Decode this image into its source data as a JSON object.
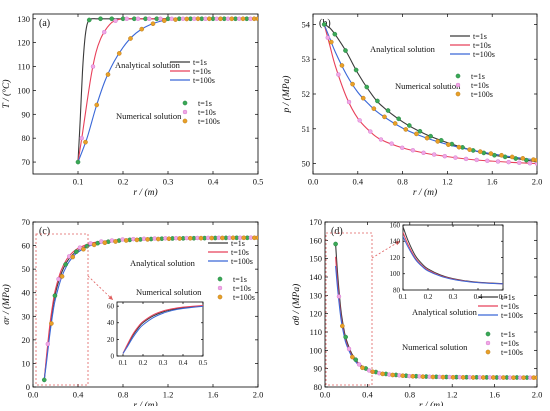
{
  "colors": {
    "t1": "#3a3a3a",
    "t10": "#e8405a",
    "t100": "#3a68d8",
    "num_t1": "#3aa856",
    "num_t10": "#f0a8e6",
    "num_t100": "#e8a028",
    "inset_box": "#e06060"
  },
  "legend": {
    "analytical": "Analytical solution",
    "numerical": "Numerical solution",
    "t1": "t=1s",
    "t10": "t=10s",
    "t100": "t=100s"
  },
  "chart_data": [
    {
      "id": "a",
      "type": "line",
      "label": "(a)",
      "xlabel": "r / (m)",
      "ylabel": "T / (°C)",
      "xlim": [
        0.0,
        0.5
      ],
      "ylim": [
        65,
        132
      ],
      "xticks": [
        0.1,
        0.2,
        0.3,
        0.4,
        0.5
      ],
      "xtick_labels": [
        "0.1",
        "0.2",
        "0.3",
        "0.4",
        "0.5"
      ],
      "yticks": [
        70,
        80,
        90,
        100,
        110,
        120,
        130
      ],
      "ytick_labels": [
        "70",
        "80",
        "90",
        "100",
        "110",
        "120",
        "130"
      ],
      "series": [
        {
          "name": "t=1s",
          "color_key": "t1",
          "marker_key": "num_t1",
          "x": [
            0.1,
            0.105,
            0.11,
            0.115,
            0.12,
            0.125,
            0.13,
            0.14,
            0.15,
            0.2,
            0.3,
            0.5
          ],
          "y": [
            70,
            88,
            108,
            121,
            127.5,
            129.5,
            130,
            130,
            130,
            130,
            130,
            130
          ]
        },
        {
          "name": "t=10s",
          "color_key": "t10",
          "marker_key": "num_t10",
          "x": [
            0.1,
            0.11,
            0.12,
            0.13,
            0.14,
            0.15,
            0.16,
            0.17,
            0.18,
            0.2,
            0.25,
            0.3,
            0.5
          ],
          "y": [
            70,
            82,
            95,
            107,
            116,
            121.5,
            125,
            127.5,
            129,
            130,
            130,
            130,
            130
          ]
        },
        {
          "name": "t=100s",
          "color_key": "t100",
          "marker_key": "num_t100",
          "x": [
            0.1,
            0.12,
            0.14,
            0.16,
            0.18,
            0.2,
            0.22,
            0.24,
            0.26,
            0.28,
            0.3,
            0.35,
            0.4,
            0.5
          ],
          "y": [
            70,
            80,
            93,
            104,
            112,
            118,
            122.5,
            125.5,
            127.5,
            128.8,
            129.5,
            130,
            130,
            130
          ]
        }
      ]
    },
    {
      "id": "b",
      "type": "line",
      "label": "(b)",
      "xlabel": "r / (m)",
      "ylabel": "p / (MPa)",
      "xlim": [
        0.0,
        2.0
      ],
      "ylim": [
        49.7,
        54.3
      ],
      "xticks": [
        0.0,
        0.4,
        0.8,
        1.2,
        1.6,
        2.0
      ],
      "xtick_labels": [
        "0.0",
        "0.4",
        "0.8",
        "1.2",
        "1.6",
        "2.0"
      ],
      "yticks": [
        50,
        51,
        52,
        53,
        54
      ],
      "ytick_labels": [
        "50",
        "51",
        "52",
        "53",
        "54"
      ],
      "series": [
        {
          "name": "t=1s",
          "color_key": "t1",
          "marker_key": "num_t1",
          "x": [
            0.1,
            0.15,
            0.2,
            0.3,
            0.4,
            0.5,
            0.6,
            0.8,
            1.0,
            1.2,
            1.4,
            1.6,
            1.8,
            2.0
          ],
          "y": [
            54,
            53.9,
            53.7,
            53.2,
            52.6,
            52.1,
            51.7,
            51.2,
            50.85,
            50.6,
            50.4,
            50.25,
            50.15,
            50.05
          ]
        },
        {
          "name": "t=10s",
          "color_key": "t10",
          "marker_key": "num_t10",
          "x": [
            0.1,
            0.15,
            0.2,
            0.3,
            0.4,
            0.5,
            0.6,
            0.8,
            1.0,
            1.2,
            1.4,
            1.6,
            1.8,
            2.0
          ],
          "y": [
            54,
            53.4,
            52.8,
            51.9,
            51.3,
            50.95,
            50.7,
            50.45,
            50.3,
            50.2,
            50.12,
            50.07,
            50.03,
            50.0
          ]
        },
        {
          "name": "t=100s",
          "color_key": "t100",
          "marker_key": "num_t100",
          "x": [
            0.1,
            0.15,
            0.2,
            0.3,
            0.4,
            0.5,
            0.6,
            0.8,
            1.0,
            1.2,
            1.4,
            1.6,
            1.8,
            2.0
          ],
          "y": [
            54,
            53.6,
            53.2,
            52.55,
            52.05,
            51.7,
            51.42,
            51.02,
            50.75,
            50.55,
            50.4,
            50.28,
            50.18,
            50.1
          ]
        }
      ]
    },
    {
      "id": "c",
      "type": "line",
      "label": "(c)",
      "xlabel": "r / (m)",
      "ylabel": "σr / (MPa)",
      "xlim": [
        0.0,
        2.0
      ],
      "ylim": [
        0,
        70
      ],
      "xticks": [
        0.0,
        0.4,
        0.8,
        1.2,
        1.6,
        2.0
      ],
      "xtick_labels": [
        "0.0",
        "0.4",
        "0.8",
        "1.2",
        "1.6",
        "2.0"
      ],
      "yticks": [
        0,
        10,
        20,
        30,
        40,
        50,
        60,
        70
      ],
      "ytick_labels": [
        "0",
        "10",
        "20",
        "30",
        "40",
        "50",
        "60",
        "70"
      ],
      "series": [
        {
          "name": "t=1s",
          "color_key": "t1",
          "marker_key": "num_t1",
          "x": [
            0.1,
            0.12,
            0.15,
            0.18,
            0.2,
            0.25,
            0.3,
            0.35,
            0.4,
            0.5,
            0.6,
            0.8,
            1.0,
            1.2,
            1.4,
            1.6,
            1.8,
            2.0
          ],
          "y": [
            3,
            12,
            25,
            35,
            40,
            48,
            53,
            56,
            58,
            60.2,
            61.3,
            62.3,
            62.7,
            63,
            63.1,
            63.2,
            63.3,
            63.3
          ]
        },
        {
          "name": "t=10s",
          "color_key": "t10",
          "marker_key": "num_t10",
          "x": [
            0.1,
            0.12,
            0.15,
            0.18,
            0.2,
            0.25,
            0.3,
            0.35,
            0.4,
            0.5,
            0.6,
            0.8,
            1.0,
            1.2,
            1.4,
            1.6,
            1.8,
            2.0
          ],
          "y": [
            3,
            13,
            26.5,
            36.5,
            41.5,
            49.5,
            54.2,
            57,
            58.8,
            60.8,
            61.7,
            62.6,
            62.9,
            63.1,
            63.2,
            63.3,
            63.3,
            63.4
          ]
        },
        {
          "name": "t=100s",
          "color_key": "t100",
          "marker_key": "num_t100",
          "x": [
            0.1,
            0.12,
            0.15,
            0.18,
            0.2,
            0.25,
            0.3,
            0.35,
            0.4,
            0.5,
            0.6,
            0.8,
            1.0,
            1.2,
            1.4,
            1.6,
            1.8,
            2.0
          ],
          "y": [
            3,
            10.5,
            22.5,
            32.5,
            37.5,
            46,
            51.5,
            55,
            57.2,
            59.8,
            61,
            62.1,
            62.6,
            62.9,
            63.1,
            63.2,
            63.3,
            63.3
          ]
        }
      ],
      "inset": {
        "xlim": [
          0.07,
          0.5
        ],
        "ylim": [
          0,
          65
        ],
        "xticks": [
          0.1,
          0.2,
          0.3,
          0.4,
          0.5
        ],
        "xtick_labels": [
          "0.1",
          "0.2",
          "0.3",
          "0.4",
          "0.5"
        ],
        "yticks": [
          0,
          20,
          40,
          60
        ],
        "ytick_labels": [
          "0",
          "20",
          "40",
          "60"
        ],
        "zoom_x": [
          0.1,
          0.5
        ],
        "zoom_y": [
          0,
          66
        ]
      }
    },
    {
      "id": "d",
      "type": "line",
      "label": "(d)",
      "xlabel": "r / (m)",
      "ylabel": "σθ / (MPa)",
      "xlim": [
        0.0,
        2.0
      ],
      "ylim": [
        80,
        170
      ],
      "xticks": [
        0.0,
        0.4,
        0.8,
        1.2,
        1.6,
        2.0
      ],
      "xtick_labels": [
        "0.0",
        "0.4",
        "0.8",
        "1.2",
        "1.6",
        "2.0"
      ],
      "yticks": [
        80,
        90,
        100,
        110,
        120,
        130,
        140,
        150,
        160,
        170
      ],
      "ytick_labels": [
        "80",
        "90",
        "100",
        "110",
        "120",
        "130",
        "140",
        "150",
        "160",
        "170"
      ],
      "series": [
        {
          "name": "t=1s",
          "color_key": "t1",
          "marker_key": "num_t1",
          "x": [
            0.1,
            0.12,
            0.15,
            0.18,
            0.2,
            0.25,
            0.3,
            0.35,
            0.4,
            0.5,
            0.6,
            0.8,
            1.0,
            1.2,
            1.4,
            1.6,
            1.8,
            2.0
          ],
          "y": [
            158,
            141,
            122,
            111,
            106,
            98.5,
            94,
            91.3,
            89.6,
            87.8,
            86.9,
            86,
            85.6,
            85.4,
            85.3,
            85.2,
            85.2,
            85.1
          ]
        },
        {
          "name": "t=10s",
          "color_key": "t10",
          "marker_key": "num_t10",
          "x": [
            0.1,
            0.12,
            0.15,
            0.18,
            0.2,
            0.25,
            0.3,
            0.35,
            0.4,
            0.5,
            0.6,
            0.8,
            1.0,
            1.2,
            1.4,
            1.6,
            1.8,
            2.0
          ],
          "y": [
            151,
            136,
            119,
            109,
            104.5,
            97.5,
            93.4,
            90.9,
            89.3,
            87.6,
            86.8,
            85.9,
            85.6,
            85.4,
            85.3,
            85.2,
            85.1,
            85.1
          ]
        },
        {
          "name": "t=100s",
          "color_key": "t100",
          "marker_key": "num_t100",
          "x": [
            0.1,
            0.12,
            0.15,
            0.18,
            0.2,
            0.25,
            0.3,
            0.35,
            0.4,
            0.5,
            0.6,
            0.8,
            1.0,
            1.2,
            1.4,
            1.6,
            1.8,
            2.0
          ],
          "y": [
            146,
            133,
            117.5,
            108,
            103.5,
            97,
            93,
            90.6,
            89.1,
            87.5,
            86.7,
            85.9,
            85.5,
            85.3,
            85.2,
            85.2,
            85.1,
            85.1
          ]
        }
      ],
      "inset": {
        "xlim": [
          0.1,
          0.5
        ],
        "ylim": [
          80,
          160
        ],
        "xticks": [
          0.1,
          0.2,
          0.3,
          0.4,
          0.5
        ],
        "xtick_labels": [
          "0.1",
          "0.2",
          "0.3",
          "0.4",
          "0.5"
        ],
        "yticks": [
          80,
          100,
          120,
          140,
          160
        ],
        "ytick_labels": [
          "80",
          "100",
          "120",
          "140",
          "160"
        ],
        "zoom_x": [
          0.1,
          0.5
        ],
        "zoom_y": [
          82,
          162
        ]
      }
    }
  ]
}
